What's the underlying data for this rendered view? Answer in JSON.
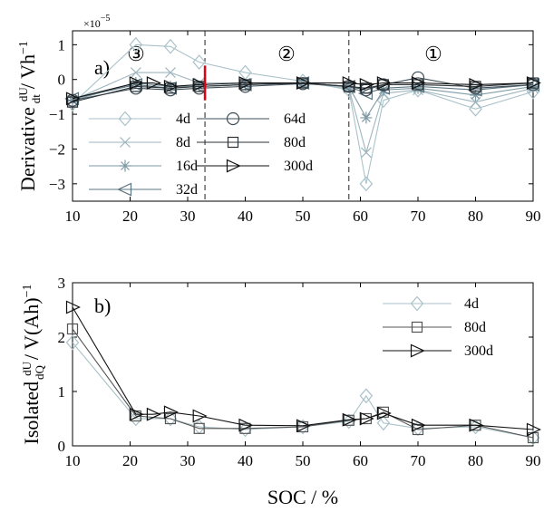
{
  "xlabel": "SOC / %",
  "panels": {
    "a": {
      "tag": "a)",
      "ylabel_lead": "Derivative",
      "ylabel_frac_num": "dU",
      "ylabel_frac_den": "dt",
      "ylabel_tail": "/ Vh",
      "ylabel_exp": "−1",
      "exponent_note": "×10",
      "exponent_note_power": "−5",
      "regions": [
        "③",
        "②",
        "①"
      ]
    },
    "b": {
      "tag": "b)",
      "ylabel_lead": "Isolated",
      "ylabel_frac_num": "dU",
      "ylabel_frac_den": "dQ",
      "ylabel_tail": "/ V(Ah)",
      "ylabel_exp": "−1"
    }
  },
  "chart_data": [
    {
      "type": "line",
      "panel": "a",
      "xlim": [
        10,
        90
      ],
      "ylim": [
        -3.5,
        1.4
      ],
      "x_ticks": [
        10,
        20,
        30,
        40,
        50,
        60,
        70,
        80,
        90
      ],
      "y_ticks": [
        1,
        0,
        -1,
        -2,
        -3
      ],
      "y_scale_note": "×10^-5",
      "region_boundaries": [
        33,
        58
      ],
      "marker_line_at": 33,
      "legend_placement": "lower-left",
      "series": [
        {
          "name": "4d",
          "marker": "diamond",
          "color": "#a9c2c9",
          "x": [
            10,
            21,
            27,
            32,
            40,
            50,
            58,
            61,
            64,
            70,
            80,
            90
          ],
          "y": [
            -0.7,
            1.0,
            0.95,
            0.5,
            0.2,
            -0.05,
            -0.3,
            -3.0,
            -0.6,
            -0.3,
            -0.85,
            -0.35
          ]
        },
        {
          "name": "8d",
          "marker": "x",
          "color": "#9fb6bf",
          "x": [
            10,
            21,
            27,
            32,
            40,
            50,
            58,
            61,
            64,
            70,
            80,
            90
          ],
          "y": [
            -0.6,
            0.2,
            0.2,
            -0.1,
            -0.1,
            -0.1,
            -0.25,
            -2.1,
            -0.4,
            -0.3,
            -0.65,
            -0.25
          ]
        },
        {
          "name": "16d",
          "marker": "star",
          "color": "#7e9aa5",
          "x": [
            10,
            21,
            27,
            32,
            40,
            50,
            58,
            61,
            64,
            70,
            80,
            90
          ],
          "y": [
            -0.6,
            -0.1,
            -0.2,
            -0.2,
            -0.15,
            -0.1,
            -0.2,
            -1.1,
            -0.3,
            -0.25,
            -0.45,
            -0.2
          ]
        },
        {
          "name": "32d",
          "marker": "triangle-left",
          "color": "#5b7480",
          "x": [
            10,
            21,
            27,
            32,
            40,
            50,
            58,
            61,
            64,
            70,
            80,
            90
          ],
          "y": [
            -0.55,
            -0.15,
            -0.25,
            -0.2,
            -0.15,
            -0.1,
            -0.2,
            -0.4,
            -0.25,
            -0.2,
            -0.3,
            -0.15
          ]
        },
        {
          "name": "64d",
          "marker": "circle",
          "color": "#3f4e57",
          "x": [
            10,
            21,
            27,
            32,
            40,
            50,
            58,
            61,
            64,
            70,
            80,
            90
          ],
          "y": [
            -0.6,
            -0.25,
            -0.3,
            -0.25,
            -0.2,
            -0.12,
            -0.2,
            -0.3,
            -0.15,
            0.05,
            -0.25,
            -0.15
          ]
        },
        {
          "name": "80d",
          "marker": "square",
          "color": "#2c3338",
          "x": [
            10,
            21,
            27,
            32,
            40,
            50,
            58,
            61,
            64,
            70,
            80,
            90
          ],
          "y": [
            -0.65,
            -0.2,
            -0.25,
            -0.2,
            -0.15,
            -0.1,
            -0.2,
            -0.25,
            -0.15,
            -0.15,
            -0.2,
            -0.1
          ]
        },
        {
          "name": "300d",
          "marker": "triangle-right",
          "color": "#111111",
          "x": [
            10,
            21,
            24,
            27,
            32,
            40,
            50,
            58,
            61,
            64,
            70,
            80,
            90
          ],
          "y": [
            -0.55,
            -0.1,
            -0.1,
            -0.2,
            -0.15,
            -0.1,
            -0.1,
            -0.1,
            -0.15,
            -0.1,
            -0.1,
            -0.15,
            -0.1
          ]
        }
      ]
    },
    {
      "type": "line",
      "panel": "b",
      "xlim": [
        10,
        90
      ],
      "ylim": [
        0,
        3
      ],
      "x_ticks": [
        10,
        20,
        30,
        40,
        50,
        60,
        70,
        80,
        90
      ],
      "y_ticks": [
        0,
        1,
        2,
        3
      ],
      "legend_placement": "upper-right",
      "series": [
        {
          "name": "4d",
          "marker": "diamond",
          "color": "#a9c2c9",
          "x": [
            10,
            21,
            27,
            32,
            40,
            50,
            58,
            61,
            64,
            70,
            80,
            90
          ],
          "y": [
            1.9,
            0.5,
            0.5,
            0.35,
            0.3,
            0.35,
            0.45,
            0.92,
            0.42,
            0.32,
            0.35,
            0.15
          ]
        },
        {
          "name": "80d",
          "marker": "square",
          "color": "#555555",
          "x": [
            10,
            21,
            27,
            32,
            40,
            50,
            58,
            61,
            64,
            70,
            80,
            90
          ],
          "y": [
            2.15,
            0.55,
            0.5,
            0.32,
            0.32,
            0.35,
            0.47,
            0.5,
            0.62,
            0.3,
            0.38,
            0.15
          ]
        },
        {
          "name": "300d",
          "marker": "triangle-right",
          "color": "#111111",
          "x": [
            10,
            21,
            24,
            27,
            32,
            40,
            50,
            58,
            61,
            64,
            70,
            80,
            90
          ],
          "y": [
            2.55,
            0.58,
            0.58,
            0.62,
            0.55,
            0.38,
            0.37,
            0.48,
            0.5,
            0.6,
            0.38,
            0.38,
            0.3
          ]
        }
      ]
    }
  ]
}
